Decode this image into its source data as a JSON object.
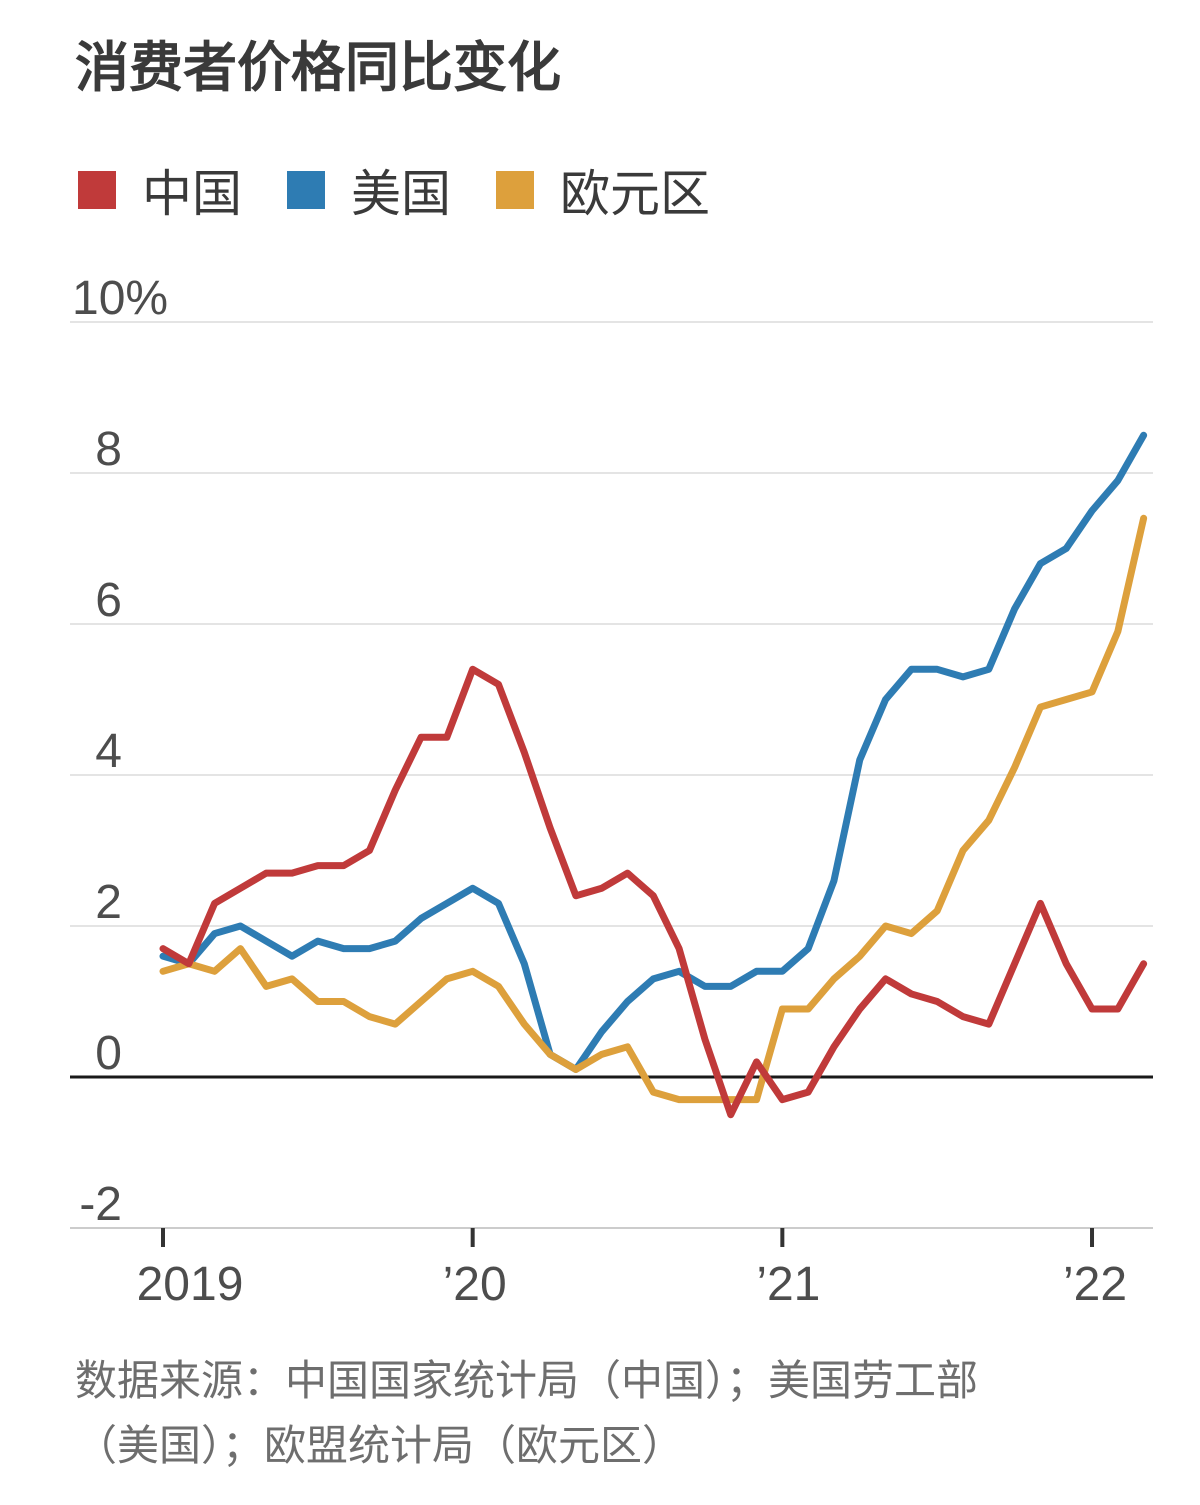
{
  "title": "消费者价格同比变化",
  "legend": [
    {
      "label": "中国",
      "color": "#c03a3a"
    },
    {
      "label": "美国",
      "color": "#2e7cb3"
    },
    {
      "label": "欧元区",
      "color": "#dda03c"
    }
  ],
  "source_lines": [
    "数据来源：中国国家统计局（中国）；美国劳工部",
    "（美国）；欧盟统计局（欧元区）"
  ],
  "chart_data": {
    "type": "line",
    "title": "消费者价格同比变化",
    "x_unit": "month",
    "x_start": "2019-01",
    "x_end": "2022-03",
    "x_tick_labels": [
      "2019",
      "’20",
      "’21",
      "’22"
    ],
    "x_tick_month_index": [
      0,
      12,
      24,
      36
    ],
    "y_tick_labels": [
      "10%",
      "8",
      "6",
      "4",
      "2",
      "0",
      "-2"
    ],
    "y_tick_values": [
      10,
      8,
      6,
      4,
      2,
      0,
      -2
    ],
    "ylim": [
      -2,
      10
    ],
    "grid": "horizontal",
    "zero_line": true,
    "legend_position": "top-left",
    "colors": {
      "gridline": "#e4e4e4",
      "baseline": "#cccccc",
      "zero_line": "#1a1a1a",
      "tick": "#333333"
    },
    "series": [
      {
        "name": "美国",
        "color": "#2e7cb3",
        "values": [
          1.6,
          1.5,
          1.9,
          2.0,
          1.8,
          1.6,
          1.8,
          1.7,
          1.7,
          1.8,
          2.1,
          2.3,
          2.5,
          2.3,
          1.5,
          0.3,
          0.1,
          0.6,
          1.0,
          1.3,
          1.4,
          1.2,
          1.2,
          1.4,
          1.4,
          1.7,
          2.6,
          4.2,
          5.0,
          5.4,
          5.4,
          5.3,
          5.4,
          6.2,
          6.8,
          7.0,
          7.5,
          7.9,
          8.5
        ]
      },
      {
        "name": "欧元区",
        "color": "#dda03c",
        "values": [
          1.4,
          1.5,
          1.4,
          1.7,
          1.2,
          1.3,
          1.0,
          1.0,
          0.8,
          0.7,
          1.0,
          1.3,
          1.4,
          1.2,
          0.7,
          0.3,
          0.1,
          0.3,
          0.4,
          -0.2,
          -0.3,
          -0.3,
          -0.3,
          -0.3,
          0.9,
          0.9,
          1.3,
          1.6,
          2.0,
          1.9,
          2.2,
          3.0,
          3.4,
          4.1,
          4.9,
          5.0,
          5.1,
          5.9,
          7.4
        ]
      },
      {
        "name": "中国",
        "color": "#c03a3a",
        "values": [
          1.7,
          1.5,
          2.3,
          2.5,
          2.7,
          2.7,
          2.8,
          2.8,
          3.0,
          3.8,
          4.5,
          4.5,
          5.4,
          5.2,
          4.3,
          3.3,
          2.4,
          2.5,
          2.7,
          2.4,
          1.7,
          0.5,
          -0.5,
          0.2,
          -0.3,
          -0.2,
          0.4,
          0.9,
          1.3,
          1.1,
          1.0,
          0.8,
          0.7,
          1.5,
          2.3,
          1.5,
          0.9,
          0.9,
          1.5
        ]
      }
    ]
  }
}
